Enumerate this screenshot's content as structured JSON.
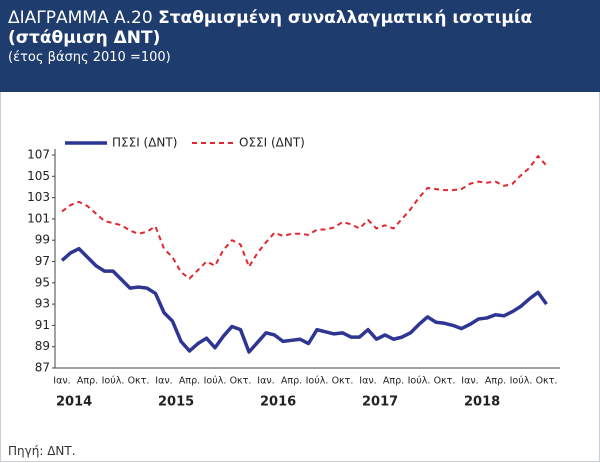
{
  "header": {
    "label": "ΔΙΑΓΡΑΜΜΑ Α.20",
    "title": "Σταθμισμένη συναλλαγματική ισοτιμία (στάθμιση ΔΝΤ)",
    "subtitle": "(έτος βάσης 2010 =100)"
  },
  "chart_data": {
    "type": "line",
    "categories": [
      "Ιαν.",
      null,
      null,
      "Απρ.",
      null,
      null,
      "Ιούλ.",
      null,
      null,
      "Οκτ.",
      null,
      null,
      "Ιαν.",
      null,
      null,
      "Απρ.",
      null,
      null,
      "Ιούλ.",
      null,
      null,
      "Οκτ.",
      null,
      null,
      "Ιαν.",
      null,
      null,
      "Απρ.",
      null,
      null,
      "Ιούλ.",
      null,
      null,
      "Οκτ.",
      null,
      null,
      "Ιαν.",
      null,
      null,
      "Απρ.",
      null,
      null,
      "Ιούλ.",
      null,
      null,
      "Οκτ.",
      null,
      null,
      "Ιαν.",
      null,
      null,
      "Απρ.",
      null,
      null,
      "Ιούλ.",
      null,
      null,
      "Οκτ."
    ],
    "years": [
      "2014",
      "2015",
      "2016",
      "2017",
      "2018"
    ],
    "series": [
      {
        "name": "ΠΣΣΙ (ΔΝΤ)",
        "color": "#2e3592",
        "dash": false,
        "values": [
          97.1,
          97.8,
          98.2,
          97.4,
          96.6,
          96.1,
          96.1,
          95.3,
          94.5,
          94.6,
          94.5,
          94.0,
          92.2,
          91.4,
          89.5,
          88.6,
          89.3,
          89.8,
          88.9,
          90.0,
          90.9,
          90.6,
          88.5,
          89.4,
          90.3,
          90.1,
          89.5,
          89.6,
          89.7,
          89.3,
          90.6,
          90.4,
          90.2,
          90.3,
          89.9,
          89.9,
          90.6,
          89.7,
          90.1,
          89.7,
          89.9,
          90.3,
          91.1,
          91.8,
          91.3,
          91.2,
          91.0,
          90.7,
          91.1,
          91.6,
          91.7,
          92.0,
          91.9,
          92.3,
          92.8,
          93.5,
          94.1,
          93.0
        ]
      },
      {
        "name": "ΟΣΣΙ (ΔΝΤ)",
        "color": "#e0282e",
        "dash": true,
        "values": [
          101.7,
          102.3,
          102.6,
          102.2,
          101.5,
          100.8,
          100.6,
          100.4,
          99.9,
          99.6,
          99.8,
          100.3,
          98.2,
          97.4,
          96.0,
          95.4,
          96.2,
          97.0,
          96.6,
          98.1,
          99.0,
          98.6,
          96.5,
          97.8,
          98.8,
          99.7,
          99.4,
          99.6,
          99.6,
          99.5,
          100.0,
          100.0,
          100.2,
          100.7,
          100.5,
          100.1,
          100.9,
          100.1,
          100.4,
          100.1,
          101.0,
          101.9,
          103.0,
          103.9,
          103.8,
          103.7,
          103.7,
          103.8,
          104.3,
          104.5,
          104.4,
          104.5,
          104.1,
          104.3,
          105.1,
          105.8,
          106.9,
          106.0
        ]
      }
    ],
    "ylim": [
      87,
      107
    ],
    "yticks": [
      87,
      89,
      91,
      93,
      95,
      97,
      99,
      101,
      103,
      105,
      107
    ],
    "grid": false,
    "legend": "top"
  },
  "footer": {
    "source": "Πηγή: ΔΝΤ."
  }
}
